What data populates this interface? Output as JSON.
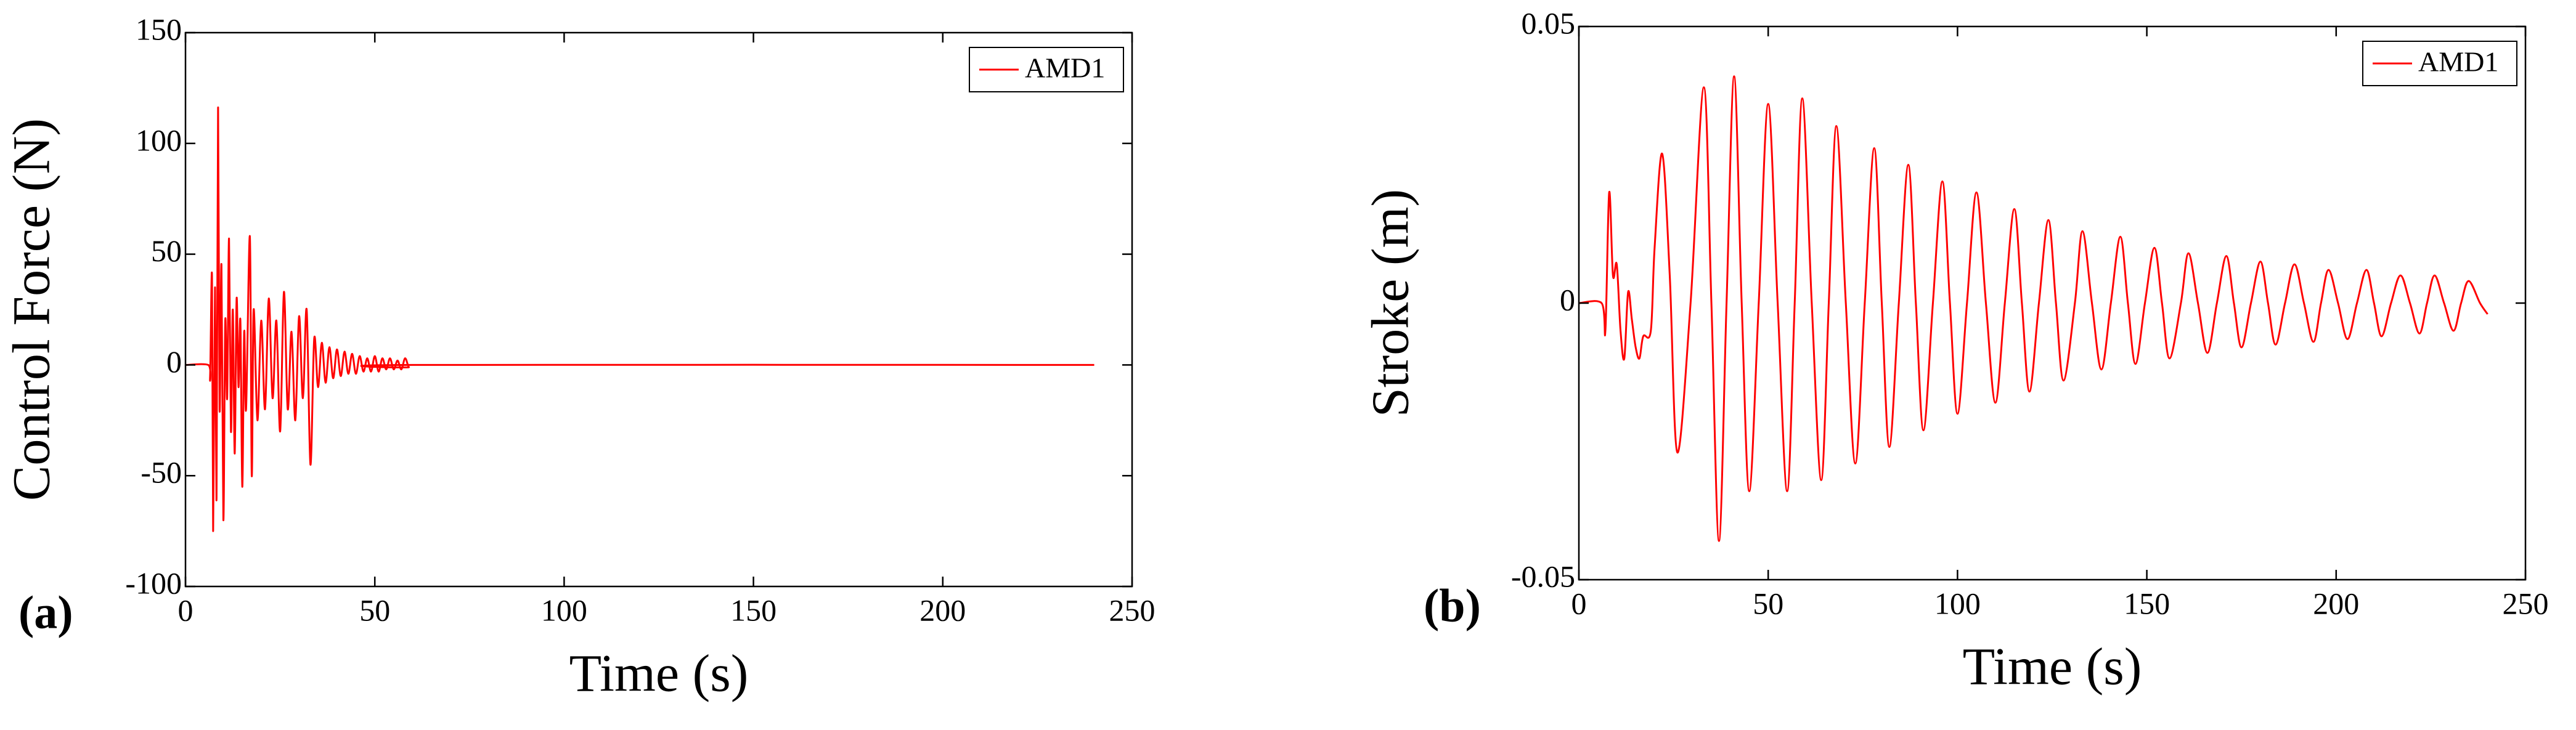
{
  "chart_data": [
    {
      "type": "line",
      "panel_label": "(a)",
      "xlabel": "Time (s)",
      "ylabel": "Control Force (N)",
      "xlim": [
        0,
        250
      ],
      "ylim": [
        -100,
        150
      ],
      "xticks": [
        0,
        50,
        100,
        150,
        200,
        250
      ],
      "yticks": [
        -100,
        -50,
        0,
        50,
        100,
        150
      ],
      "legend": "upper right",
      "x": [
        0,
        6,
        6.5,
        7,
        7.3,
        7.8,
        8.2,
        8.6,
        9,
        9.5,
        10,
        10.5,
        11,
        11.5,
        12,
        12.5,
        13,
        13.5,
        14,
        14.5,
        15,
        15.5,
        16,
        17,
        17.5,
        18,
        19,
        20,
        21,
        22,
        23,
        24,
        25,
        26,
        27,
        28,
        29,
        30,
        31,
        32,
        33,
        34,
        35,
        36,
        37,
        38,
        39,
        40,
        41,
        42,
        43,
        44,
        45,
        46,
        47,
        48,
        49,
        50,
        51,
        52,
        53,
        54,
        55,
        56,
        57,
        58,
        59,
        60,
        240
      ],
      "series": [
        {
          "name": "AMD1",
          "color": "#ff0000",
          "values": [
            0,
            0,
            -5,
            40,
            -75,
            35,
            -60,
            116,
            -20,
            45,
            -70,
            20,
            -15,
            57,
            -30,
            25,
            -40,
            30,
            -10,
            20,
            -55,
            15,
            -20,
            58,
            -50,
            25,
            -25,
            20,
            -20,
            30,
            -15,
            20,
            -30,
            33,
            -20,
            15,
            -25,
            22,
            -15,
            25,
            -45,
            12,
            -10,
            10,
            -8,
            8,
            -6,
            7,
            -5,
            6,
            -4,
            5,
            -4,
            4,
            -3,
            3,
            -3,
            4,
            -3,
            3,
            -2,
            3,
            -2,
            2,
            -2,
            3,
            -1,
            0,
            0
          ]
        }
      ]
    },
    {
      "type": "line",
      "panel_label": "(b)",
      "xlabel": "Time (s)",
      "ylabel": "Stroke (m)",
      "xlim": [
        0,
        250
      ],
      "ylim": [
        -0.05,
        0.05
      ],
      "xticks": [
        0,
        50,
        100,
        150,
        200,
        250
      ],
      "yticks": [
        -0.05,
        0,
        0.05
      ],
      "legend": "upper right",
      "x": [
        0,
        6,
        7,
        8,
        9,
        10,
        11,
        12,
        13,
        14,
        15,
        16,
        17,
        19,
        20,
        22,
        24,
        26,
        29.5,
        33,
        35,
        37,
        39,
        41,
        43,
        45,
        47.5,
        50,
        52.5,
        55,
        57,
        59,
        61.5,
        64,
        66,
        68,
        70.5,
        73,
        75.5,
        78,
        80,
        82,
        84.5,
        87,
        89,
        91,
        93.5,
        96,
        98,
        100,
        102.5,
        105,
        107.5,
        110,
        112.5,
        115,
        117,
        119,
        121.5,
        124,
        126,
        128,
        131,
        133,
        135.5,
        138,
        140.5,
        143,
        145,
        147,
        149.5,
        152,
        154,
        156,
        159,
        161,
        163.5,
        166,
        168.5,
        171,
        173,
        175,
        177.5,
        180,
        182,
        184,
        186.5,
        189,
        191.5,
        194,
        196,
        198,
        200.5,
        203,
        205.5,
        208,
        210,
        212,
        214.5,
        217,
        219.5,
        222,
        224,
        226,
        228.5,
        231,
        233,
        235,
        238,
        240
      ],
      "series": [
        {
          "name": "AMD1",
          "color": "#ff0000",
          "values": [
            0,
            0,
            -0.005,
            0.02,
            0.005,
            0.007,
            -0.005,
            -0.01,
            0.002,
            -0.003,
            -0.008,
            -0.01,
            -0.006,
            -0.005,
            0.01,
            0.027,
            0.005,
            -0.027,
            0,
            0.039,
            0,
            -0.043,
            0,
            0.041,
            0,
            -0.034,
            0,
            0.036,
            0,
            -0.034,
            0,
            0.037,
            0,
            -0.032,
            0,
            0.032,
            0,
            -0.029,
            0,
            0.028,
            0,
            -0.026,
            0,
            0.025,
            0,
            -0.023,
            0,
            0.022,
            0,
            -0.02,
            0,
            0.02,
            0,
            -0.018,
            0,
            0.017,
            0,
            -0.016,
            0,
            0.015,
            0,
            -0.014,
            0,
            0.013,
            0,
            -0.012,
            0,
            0.012,
            0,
            -0.011,
            0,
            0.01,
            0,
            -0.01,
            0,
            0.009,
            0,
            -0.009,
            0,
            0.0085,
            0,
            -0.008,
            0,
            0.0075,
            0,
            -0.0075,
            0,
            0.007,
            0,
            -0.007,
            0,
            0.006,
            0,
            -0.0065,
            0,
            0.006,
            0,
            -0.006,
            0,
            0.005,
            0,
            -0.0055,
            0,
            0.005,
            0,
            -0.005,
            0,
            0.004,
            0,
            -0.002
          ]
        }
      ]
    }
  ]
}
